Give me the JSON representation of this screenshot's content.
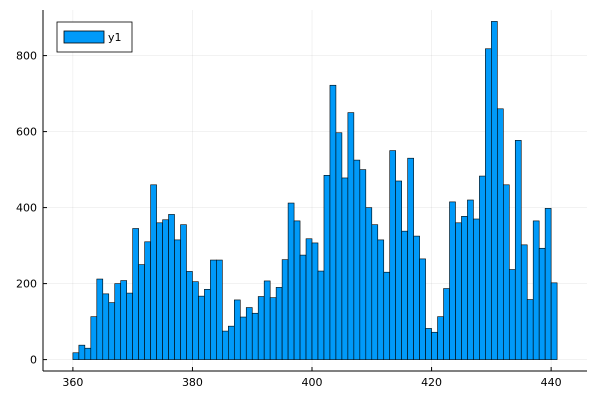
{
  "chart_data": {
    "type": "bar",
    "title": "",
    "xlabel": "",
    "ylabel": "",
    "xlim": [
      355,
      446
    ],
    "ylim": [
      -30,
      920
    ],
    "xticks": [
      360,
      380,
      400,
      420,
      440
    ],
    "yticks": [
      0,
      200,
      400,
      600,
      800
    ],
    "grid": true,
    "legend": {
      "position": "top-left"
    },
    "bin_width": 1,
    "x_start": 360,
    "series": [
      {
        "name": "y1",
        "color": "#009af9",
        "values": [
          18,
          38,
          30,
          113,
          212,
          173,
          150,
          200,
          208,
          175,
          345,
          250,
          310,
          460,
          360,
          368,
          382,
          315,
          355,
          232,
          205,
          167,
          185,
          262,
          262,
          75,
          88,
          157,
          112,
          137,
          122,
          166,
          207,
          163,
          190,
          263,
          412,
          365,
          275,
          318,
          307,
          233,
          485,
          722,
          597,
          478,
          650,
          525,
          500,
          400,
          355,
          315,
          230,
          550,
          470,
          338,
          530,
          325,
          265,
          82,
          72,
          113,
          187,
          415,
          360,
          377,
          420,
          370,
          483,
          818,
          890,
          660,
          460,
          237,
          577,
          302,
          158,
          365,
          293,
          398,
          202
        ]
      }
    ]
  }
}
